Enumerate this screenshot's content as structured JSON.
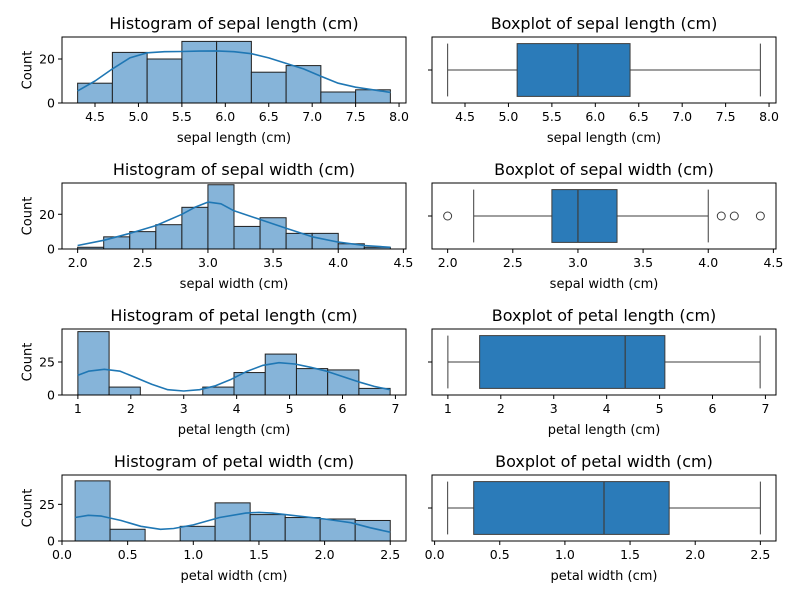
{
  "colors": {
    "hist_fill": "#86b4d9",
    "hist_edge": "#1f1f1f",
    "kde_line": "#1f77b4",
    "box_fill": "#2b7bb9",
    "box_line": "#3d3d3d",
    "axis": "#000000"
  },
  "chart_data": [
    {
      "type": "bar",
      "subtype": "histogram",
      "title": "Histogram of sepal length (cm)",
      "xlabel": "sepal length (cm)",
      "ylabel": "Count",
      "xlim": [
        4.12,
        8.08
      ],
      "ylim": [
        0,
        30
      ],
      "xticks": [
        4.5,
        5.0,
        5.5,
        6.0,
        6.5,
        7.0,
        7.5,
        8.0
      ],
      "xticklabels": [
        "4.5",
        "5.0",
        "5.5",
        "6.0",
        "6.5",
        "7.0",
        "7.5",
        "8.0"
      ],
      "yticks": [
        0,
        20
      ],
      "bins": [
        4.3,
        4.7,
        5.1,
        5.5,
        5.9,
        6.3,
        6.7,
        7.1,
        7.5,
        7.9
      ],
      "counts": [
        9,
        23,
        20,
        28,
        28,
        14,
        17,
        5,
        6
      ],
      "kde": {
        "x": [
          4.3,
          4.5,
          4.7,
          4.9,
          5.1,
          5.3,
          5.5,
          5.7,
          5.9,
          6.1,
          6.3,
          6.5,
          6.7,
          6.9,
          7.1,
          7.3,
          7.5,
          7.7,
          7.9
        ],
        "y": [
          5.5,
          10,
          15.5,
          20.5,
          22.8,
          23.3,
          23.4,
          23.6,
          23.7,
          23.3,
          22.4,
          20.5,
          18,
          15.5,
          12.2,
          9,
          7.2,
          6,
          4.8
        ]
      }
    },
    {
      "type": "box",
      "title": "Boxplot of sepal length (cm)",
      "xlabel": "sepal length (cm)",
      "xlim": [
        4.12,
        8.08
      ],
      "xticks": [
        4.5,
        5.0,
        5.5,
        6.0,
        6.5,
        7.0,
        7.5,
        8.0
      ],
      "xticklabels": [
        "4.5",
        "5.0",
        "5.5",
        "6.0",
        "6.5",
        "7.0",
        "7.5",
        "8.0"
      ],
      "min": 4.3,
      "q1": 5.1,
      "median": 5.8,
      "q3": 6.4,
      "max": 7.9,
      "outliers": []
    },
    {
      "type": "bar",
      "subtype": "histogram",
      "title": "Histogram of sepal width (cm)",
      "xlabel": "sepal width (cm)",
      "ylabel": "Count",
      "xlim": [
        1.88,
        4.52
      ],
      "ylim": [
        0,
        38
      ],
      "xticks": [
        2.0,
        2.5,
        3.0,
        3.5,
        4.0,
        4.5
      ],
      "xticklabels": [
        "2.0",
        "2.5",
        "3.0",
        "3.5",
        "4.0",
        "4.5"
      ],
      "yticks": [
        0,
        20
      ],
      "bins": [
        2.0,
        2.2,
        2.4,
        2.6,
        2.8,
        3.0,
        3.2,
        3.4,
        3.6,
        3.8,
        4.0,
        4.2,
        4.4
      ],
      "counts": [
        1,
        7,
        10,
        14,
        24,
        37,
        13,
        18,
        9,
        9,
        3,
        1
      ],
      "kde": {
        "x": [
          2.0,
          2.2,
          2.4,
          2.6,
          2.8,
          2.9,
          3.0,
          3.1,
          3.2,
          3.4,
          3.6,
          3.8,
          4.0,
          4.2,
          4.4
        ],
        "y": [
          2,
          5,
          9,
          13.5,
          20,
          24,
          27,
          26,
          22,
          17,
          12,
          7,
          4,
          2,
          1
        ]
      }
    },
    {
      "type": "box",
      "title": "Boxplot of sepal width (cm)",
      "xlabel": "sepal width (cm)",
      "xlim": [
        1.88,
        4.52
      ],
      "xticks": [
        2.0,
        2.5,
        3.0,
        3.5,
        4.0,
        4.5
      ],
      "xticklabels": [
        "2.0",
        "2.5",
        "3.0",
        "3.5",
        "4.0",
        "4.5"
      ],
      "min": 2.2,
      "q1": 2.8,
      "median": 3.0,
      "q3": 3.3,
      "max": 4.0,
      "outliers": [
        2.0,
        4.1,
        4.2,
        4.4
      ]
    },
    {
      "type": "bar",
      "subtype": "histogram",
      "title": "Histogram of petal length (cm)",
      "xlabel": "petal length (cm)",
      "ylabel": "Count",
      "xlim": [
        0.7,
        7.2
      ],
      "ylim": [
        0,
        50
      ],
      "xticks": [
        1,
        2,
        3,
        4,
        5,
        6,
        7
      ],
      "xticklabels": [
        "1",
        "2",
        "3",
        "4",
        "5",
        "6",
        "7"
      ],
      "yticks": [
        0,
        25
      ],
      "bins": [
        1.0,
        1.59,
        2.18,
        2.77,
        3.36,
        3.95,
        4.54,
        5.13,
        5.72,
        6.31,
        6.9
      ],
      "counts": [
        48,
        6,
        0,
        0,
        6,
        17,
        31,
        20,
        19,
        5
      ],
      "kde": {
        "x": [
          1.0,
          1.2,
          1.5,
          1.8,
          2.1,
          2.4,
          2.7,
          3.0,
          3.3,
          3.6,
          3.9,
          4.2,
          4.5,
          4.8,
          5.1,
          5.4,
          5.7,
          6.0,
          6.3,
          6.6,
          6.9
        ],
        "y": [
          15,
          18,
          19.5,
          18,
          13,
          8,
          4,
          3,
          4,
          7,
          12,
          18,
          22.5,
          24.5,
          23.5,
          21,
          18,
          14,
          10,
          6.5,
          4
        ]
      }
    },
    {
      "type": "box",
      "title": "Boxplot of petal length (cm)",
      "xlabel": "petal length (cm)",
      "xlim": [
        0.7,
        7.2
      ],
      "xticks": [
        1,
        2,
        3,
        4,
        5,
        6,
        7
      ],
      "xticklabels": [
        "1",
        "2",
        "3",
        "4",
        "5",
        "6",
        "7"
      ],
      "min": 1.0,
      "q1": 1.6,
      "median": 4.35,
      "q3": 5.1,
      "max": 6.9,
      "outliers": []
    },
    {
      "type": "bar",
      "subtype": "histogram",
      "title": "Histogram of petal width (cm)",
      "xlabel": "petal width (cm)",
      "ylabel": "Count",
      "xlim": [
        0.0,
        2.62
      ],
      "ylim": [
        0,
        45
      ],
      "xticks": [
        0.0,
        0.5,
        1.0,
        1.5,
        2.0,
        2.5
      ],
      "xticklabels": [
        "0.0",
        "0.5",
        "1.0",
        "1.5",
        "2.0",
        "2.5"
      ],
      "yticks": [
        0,
        25
      ],
      "bins": [
        0.1,
        0.366,
        0.633,
        0.9,
        1.166,
        1.433,
        1.7,
        1.966,
        2.233,
        2.5
      ],
      "counts": [
        41,
        8,
        0,
        10,
        26,
        18,
        16,
        15,
        14
      ],
      "kde": {
        "x": [
          0.1,
          0.2,
          0.3,
          0.45,
          0.6,
          0.75,
          0.85,
          1.0,
          1.2,
          1.4,
          1.5,
          1.6,
          1.8,
          2.0,
          2.2,
          2.35,
          2.5
        ],
        "y": [
          16,
          17.5,
          17,
          14,
          10,
          8,
          8.5,
          11,
          16,
          19,
          19.5,
          19,
          17,
          15,
          12.5,
          9,
          6
        ]
      }
    },
    {
      "type": "box",
      "title": "Boxplot of petal width (cm)",
      "xlabel": "petal width (cm)",
      "xlim": [
        -0.02,
        2.62
      ],
      "xticks": [
        0.0,
        0.5,
        1.0,
        1.5,
        2.0,
        2.5
      ],
      "xticklabels": [
        "0.0",
        "0.5",
        "1.0",
        "1.5",
        "2.0",
        "2.5"
      ],
      "min": 0.1,
      "q1": 0.3,
      "median": 1.3,
      "q3": 1.8,
      "max": 2.5,
      "outliers": []
    }
  ]
}
